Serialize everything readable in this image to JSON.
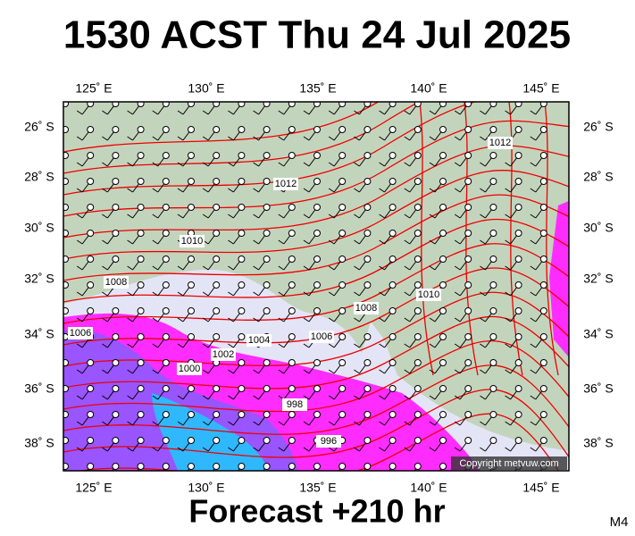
{
  "header": {
    "title": "1530 ACST Thu 24 Jul 2025"
  },
  "map": {
    "lon_labels": [
      "125˚ E",
      "130˚ E",
      "135˚ E",
      "140˚ E",
      "145˚ E"
    ],
    "lat_labels": [
      "26˚ S",
      "28˚ S",
      "30˚ S",
      "32˚ S",
      "34˚ S",
      "36˚ S",
      "38˚ S"
    ],
    "isobar_labels": [
      "1012",
      "1012",
      "1010",
      "1008",
      "1010",
      "1008",
      "1006",
      "1006",
      "1004",
      "1002",
      "1000",
      "998",
      "996"
    ],
    "copyright": "Copyright metvuw.com"
  },
  "footer": {
    "forecast": "Forecast +210 hr",
    "code": "M4"
  }
}
